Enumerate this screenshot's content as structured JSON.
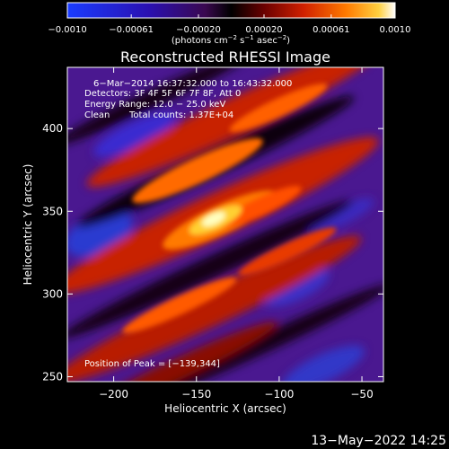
{
  "colorbar": {
    "tick_labels": [
      "−0.0010",
      "−0.00061",
      "−0.00020",
      "0.00020",
      "0.00061",
      "0.0010"
    ],
    "tick_values": [
      -0.001,
      -0.00061,
      -0.0002,
      0.0002,
      0.00061,
      0.001
    ],
    "range": [
      -0.001,
      0.001
    ],
    "unit_prefix": "(photons cm",
    "unit_exp1": "−2",
    "unit_mid": " s",
    "unit_exp2": "−1",
    "unit_mid2": " asec",
    "unit_exp3": "−2",
    "unit_suffix": ")",
    "colors": [
      "#1a3cff",
      "#2a10b0",
      "#4a1a90",
      "#000000",
      "#6a0000",
      "#c81e00",
      "#ff5a00",
      "#ffb020",
      "#ffffff"
    ]
  },
  "title": "Reconstructed RHESSI Image",
  "info": {
    "time_range": "6−Mar−2014 16:37:32.000 to 16:43:32.000",
    "detectors": "Detectors: 3F 4F 5F 6F 7F 8F, Att 0",
    "energy": "Energy Range: 12.0 − 25.0 keV",
    "clean": "Clean",
    "counts": "Total counts: 1.37E+04",
    "peak": "Position of Peak = [−139,344]"
  },
  "axes": {
    "xlabel": "Heliocentric X (arcsec)",
    "ylabel": "Heliocentric Y (arcsec)",
    "x_range": [
      -228,
      -37
    ],
    "y_range": [
      247,
      437
    ],
    "x_ticks": [
      -200,
      -150,
      -100,
      -50
    ],
    "x_tick_labels": [
      "−200",
      "−150",
      "−100",
      "−50"
    ],
    "y_ticks": [
      250,
      300,
      350,
      400
    ],
    "y_tick_labels": [
      "250",
      "300",
      "350",
      "400"
    ]
  },
  "footer": {
    "date": "13−May−2022 14:25"
  }
}
